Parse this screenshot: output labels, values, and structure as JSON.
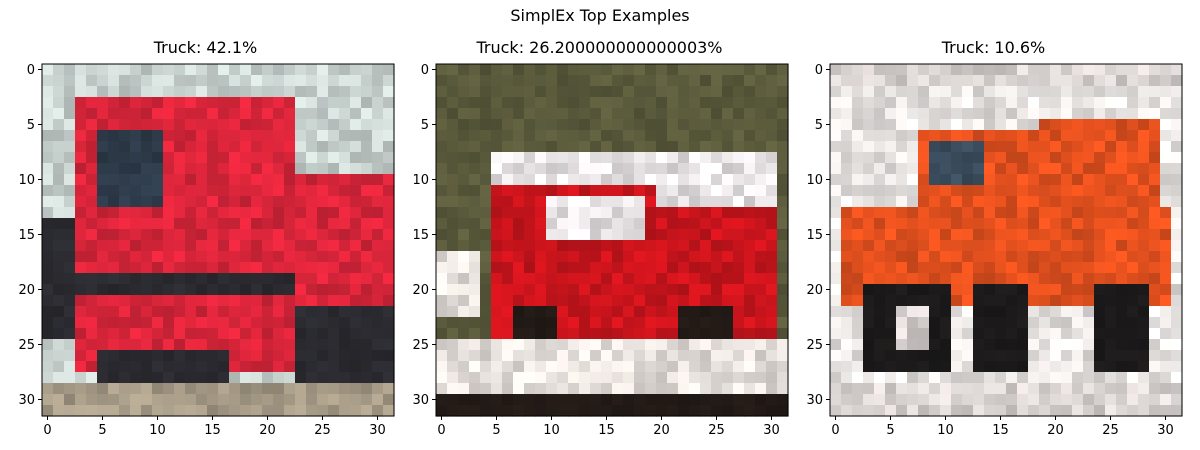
{
  "figure": {
    "title": "SimplEx Top Examples"
  },
  "chart_data": [
    {
      "type": "image",
      "title": "Truck: 42.1%",
      "class_label": "Truck",
      "weight_percent": 42.1,
      "image_size": [
        32,
        32
      ],
      "xlim": [
        -0.5,
        31.5
      ],
      "ylim": [
        31.5,
        -0.5
      ],
      "xticks": [
        0,
        5,
        10,
        15,
        20,
        25,
        30
      ],
      "yticks": [
        0,
        5,
        10,
        15,
        20,
        25,
        30
      ],
      "tick_labels": [
        "0",
        "5",
        "10",
        "15",
        "20",
        "25",
        "30"
      ],
      "subject": "red fire truck, front view, on grey road with trees and white building behind",
      "palette": {
        "truck": "#d8253a",
        "background": "#c9d3d0",
        "dark": "#2a2a30",
        "ground": "#a59a86",
        "window": "#2e3b4a"
      }
    },
    {
      "type": "image",
      "title": "Truck: 26.200000000000003%",
      "class_label": "Truck",
      "weight_percent": 26.200000000000003,
      "image_size": [
        32,
        32
      ],
      "xlim": [
        -0.5,
        31.5
      ],
      "ylim": [
        31.5,
        -0.5
      ],
      "xticks": [
        0,
        5,
        10,
        15,
        20,
        25,
        30
      ],
      "yticks": [
        0,
        5,
        10,
        15,
        20,
        25,
        30
      ],
      "tick_labels": [
        "0",
        "5",
        "10",
        "15",
        "20",
        "25",
        "30"
      ],
      "subject": "red and white fire engine, side view, trees and street behind",
      "palette": {
        "truck": "#c8141c",
        "background": "#5a5a3c",
        "dark": "#221a16",
        "ground": "#e6e0dc",
        "window": "#e8e4e6"
      }
    },
    {
      "type": "image",
      "title": "Truck: 10.6%",
      "class_label": "Truck",
      "weight_percent": 10.6,
      "image_size": [
        32,
        32
      ],
      "xlim": [
        -0.5,
        31.5
      ],
      "ylim": [
        31.5,
        -0.5
      ],
      "xticks": [
        0,
        5,
        10,
        15,
        20,
        25,
        30
      ],
      "yticks": [
        0,
        5,
        10,
        15,
        20,
        25,
        30
      ],
      "tick_labels": [
        "0",
        "5",
        "10",
        "15",
        "20",
        "25",
        "30"
      ],
      "subject": "orange-red dump truck on light background",
      "palette": {
        "truck": "#e2501e",
        "background": "#e8e4e2",
        "dark": "#1c1a1a",
        "ground": "#d8d2d0",
        "window": "#3a4c5c"
      }
    }
  ]
}
